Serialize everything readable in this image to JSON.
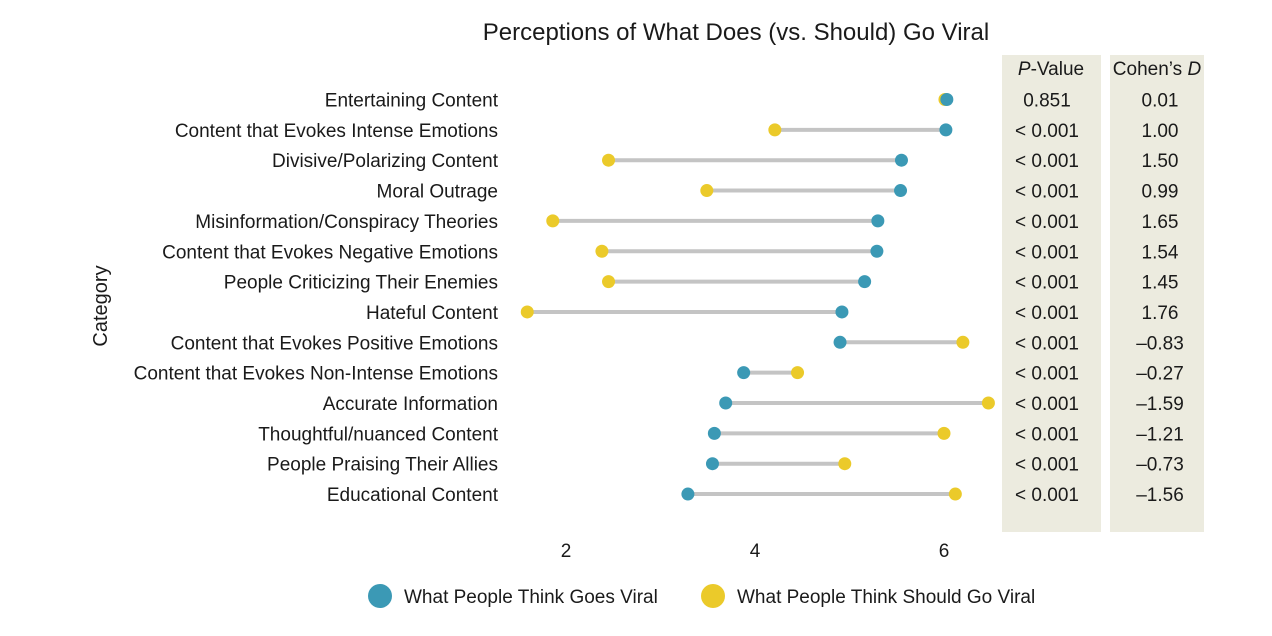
{
  "chart_data": {
    "type": "dumbbell",
    "title": "Perceptions of What Does (vs. Should) Go Viral",
    "ylabel": "Category",
    "xlabel": "",
    "xlim": [
      1.4,
      6.45
    ],
    "xticks": [
      2,
      4,
      6
    ],
    "categories": [
      "Entertaining Content",
      "Content that Evokes Intense Emotions",
      "Divisive/Polarizing Content",
      "Moral Outrage",
      "Misinformation/Conspiracy Theories",
      "Content that Evokes Negative Emotions",
      "People Criticizing Their Enemies",
      "Hateful Content",
      "Content that Evokes Positive Emotions",
      "Content that Evokes Non-Intense Emotions",
      "Accurate Information",
      "Thoughtful/nuanced Content",
      "People Praising Their Allies",
      "Educational Content"
    ],
    "series": [
      {
        "name": "What People Think Goes Viral",
        "color": "#3b99b5",
        "values": [
          6.03,
          6.02,
          5.55,
          5.54,
          5.3,
          5.29,
          5.16,
          4.92,
          4.9,
          3.88,
          3.69,
          3.57,
          3.55,
          3.29
        ]
      },
      {
        "name": "What People Think Should Go Viral",
        "color": "#ebca2a",
        "values": [
          6.01,
          4.21,
          2.45,
          3.49,
          1.86,
          2.38,
          2.45,
          1.59,
          6.2,
          4.45,
          6.47,
          6.0,
          4.95,
          6.12
        ]
      }
    ],
    "table": {
      "pvalue_header": {
        "italic": "P",
        "rest": "-Value"
      },
      "cohen_header": {
        "text": "Cohen’s ",
        "italic": "D"
      },
      "pvalues": [
        "0.851",
        "< 0.001",
        "< 0.001",
        "< 0.001",
        "< 0.001",
        "< 0.001",
        "< 0.001",
        "< 0.001",
        "< 0.001",
        "< 0.001",
        "< 0.001",
        "< 0.001",
        "< 0.001",
        "< 0.001"
      ],
      "cohens_d": [
        "0.01",
        "1.00",
        "1.50",
        "0.99",
        "1.65",
        "1.54",
        "1.45",
        "1.76",
        "–0.83",
        "–0.27",
        "–1.59",
        "–1.21",
        "–0.73",
        "–1.56"
      ],
      "background": "#ecebdf"
    },
    "legend": {
      "position": "bottom-center"
    },
    "connector_color": "#c4c4c4"
  }
}
